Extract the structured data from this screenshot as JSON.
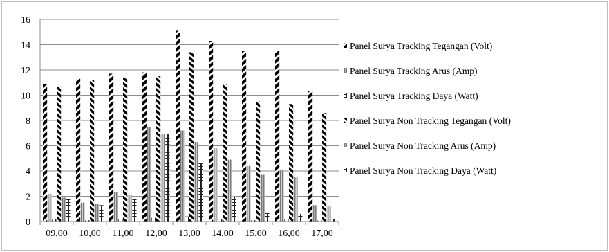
{
  "chart_data": {
    "type": "bar",
    "title": "",
    "xlabel": "",
    "ylabel": "",
    "ylim": [
      0,
      16
    ],
    "yticks": [
      0,
      2,
      4,
      6,
      8,
      10,
      12,
      14,
      16
    ],
    "grid": true,
    "legend_position": "right",
    "categories": [
      "09,00",
      "10,00",
      "11,00",
      "12,00",
      "13,00",
      "14,00",
      "15,00",
      "16,00",
      "17,00"
    ],
    "series": [
      {
        "name": "Panel Surya Tracking Tegangan (Volt)",
        "pattern": "black-wide-diagonal",
        "values": [
          10.9,
          11.3,
          11.7,
          11.8,
          15.1,
          14.3,
          13.5,
          13.5,
          10.3
        ]
      },
      {
        "name": "Panel Surya Tracking Arus (Amp)",
        "pattern": "gray-vertical-stripes",
        "values": [
          2.2,
          1.5,
          2.3,
          7.5,
          7.2,
          5.8,
          4.4,
          4.1,
          1.3
        ]
      },
      {
        "name": "Panel Surya Tracking Daya (Watt)",
        "pattern": "dark-vertical-ladder",
        "values": [
          0.2,
          0.1,
          0.2,
          0.3,
          0.4,
          0.2,
          0.1,
          0.2,
          0.1
        ]
      },
      {
        "name": "Panel Surya Non Tracking Tegangan (Volt)",
        "pattern": "black-diagonal",
        "values": [
          10.7,
          11.2,
          11.4,
          11.5,
          13.4,
          10.9,
          9.5,
          9.3,
          8.6
        ]
      },
      {
        "name": "Panel Surya Non Tracking Arus (Amp)",
        "pattern": "gray-vertical-stripes",
        "values": [
          1.9,
          1.4,
          2.1,
          6.9,
          6.3,
          4.9,
          3.7,
          3.5,
          1.2
        ]
      },
      {
        "name": "Panel Surya Non Tracking Daya (Watt)",
        "pattern": "dark-vertical-ladder",
        "values": [
          1.8,
          1.3,
          1.8,
          6.9,
          4.6,
          2.0,
          0.7,
          0.6,
          0.2
        ]
      }
    ]
  }
}
